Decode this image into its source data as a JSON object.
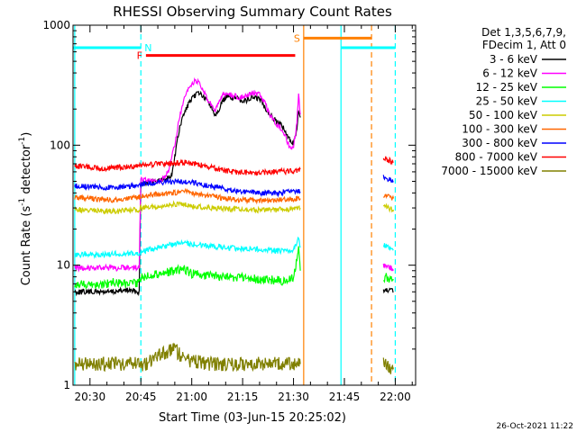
{
  "chart_data": {
    "type": "line",
    "title": "RHESSI Observing Summary Count Rates",
    "xlabel": "Start Time (03-Jun-15 20:25:02)",
    "ylabel_parts": [
      "Count Rate (s",
      "-1",
      " detector",
      "-1",
      ")"
    ],
    "y_scale": "log",
    "ylim": [
      1,
      1000
    ],
    "xlim_minutes_of_day": [
      1225.0,
      1326.0
    ],
    "y_tick_labels": [
      {
        "value": 1,
        "label": "1"
      },
      {
        "value": 10,
        "label": "10"
      },
      {
        "value": 100,
        "label": "100"
      },
      {
        "value": 1000,
        "label": "1000"
      }
    ],
    "x_tick_labels": [
      {
        "value": 1230,
        "label": "20:30"
      },
      {
        "value": 1245,
        "label": "20:45"
      },
      {
        "value": 1260,
        "label": "21:00"
      },
      {
        "value": 1275,
        "label": "21:15"
      },
      {
        "value": 1290,
        "label": "21:30"
      },
      {
        "value": 1305,
        "label": "21:45"
      },
      {
        "value": 1320,
        "label": "22:00"
      }
    ],
    "legend_header": [
      "Det 1,3,5,6,7,9,",
      "FDecim 1, Att 0"
    ],
    "legend_position": "right",
    "series": [
      {
        "name": "3 - 6 keV",
        "color": "#000000",
        "points": [
          [
            1225.5,
            6
          ],
          [
            1229,
            6
          ],
          [
            1233,
            6
          ],
          [
            1237,
            6
          ],
          [
            1241,
            6.2
          ],
          [
            1244.5,
            6
          ],
          [
            1245,
            48
          ],
          [
            1249,
            50
          ],
          [
            1252,
            52
          ],
          [
            1254,
            55
          ],
          [
            1255,
            80
          ],
          [
            1256,
            120
          ],
          [
            1257,
            160
          ],
          [
            1258,
            190
          ],
          [
            1259,
            220
          ],
          [
            1260,
            240
          ],
          [
            1261,
            260
          ],
          [
            1262,
            280
          ],
          [
            1263,
            260
          ],
          [
            1264,
            240
          ],
          [
            1265,
            230
          ],
          [
            1266,
            200
          ],
          [
            1267,
            180
          ],
          [
            1268,
            200
          ],
          [
            1269,
            230
          ],
          [
            1270,
            250
          ],
          [
            1272,
            250
          ],
          [
            1274,
            240
          ],
          [
            1276,
            235
          ],
          [
            1278,
            250
          ],
          [
            1280,
            245
          ],
          [
            1281,
            220
          ],
          [
            1282,
            200
          ],
          [
            1283,
            180
          ],
          [
            1285,
            160
          ],
          [
            1287,
            140
          ],
          [
            1288,
            120
          ],
          [
            1289,
            110
          ],
          [
            1290,
            105
          ],
          [
            1291,
            130
          ],
          [
            1291.5,
            200
          ],
          [
            1292,
            170
          ]
        ],
        "gap_after_minute": 1292.2,
        "resume_points": [
          [
            1316.5,
            6
          ],
          [
            1318,
            6.2
          ],
          [
            1319.5,
            6
          ]
        ]
      },
      {
        "name": "6 - 12 keV",
        "color": "#ff00ff",
        "points": [
          [
            1225.5,
            9.5
          ],
          [
            1229,
            9.5
          ],
          [
            1233,
            9.6
          ],
          [
            1237,
            9.4
          ],
          [
            1241,
            9.6
          ],
          [
            1244.5,
            9.5
          ],
          [
            1245,
            52
          ],
          [
            1248,
            50
          ],
          [
            1251,
            50
          ],
          [
            1253,
            60
          ],
          [
            1255,
            100
          ],
          [
            1256,
            150
          ],
          [
            1257,
            200
          ],
          [
            1258,
            250
          ],
          [
            1259,
            290
          ],
          [
            1260,
            320
          ],
          [
            1261,
            350
          ],
          [
            1262,
            330
          ],
          [
            1263,
            300
          ],
          [
            1264,
            260
          ],
          [
            1265,
            230
          ],
          [
            1266,
            210
          ],
          [
            1267,
            190
          ],
          [
            1268,
            230
          ],
          [
            1269,
            260
          ],
          [
            1270,
            270
          ],
          [
            1272,
            260
          ],
          [
            1274,
            250
          ],
          [
            1276,
            260
          ],
          [
            1278,
            270
          ],
          [
            1280,
            265
          ],
          [
            1281,
            240
          ],
          [
            1282,
            210
          ],
          [
            1283,
            180
          ],
          [
            1285,
            150
          ],
          [
            1287,
            130
          ],
          [
            1288,
            110
          ],
          [
            1289,
            95
          ],
          [
            1290,
            95
          ],
          [
            1291,
            150
          ],
          [
            1291.5,
            260
          ],
          [
            1292,
            180
          ]
        ],
        "gap_after_minute": 1292.2,
        "resume_points": [
          [
            1316.5,
            10
          ],
          [
            1318,
            9.8
          ],
          [
            1319.5,
            9.2
          ]
        ]
      },
      {
        "name": "12 - 25 keV",
        "color": "#00ff00",
        "points": [
          [
            1225.5,
            6.8
          ],
          [
            1229,
            7
          ],
          [
            1233,
            6.9
          ],
          [
            1237,
            7.2
          ],
          [
            1241,
            7
          ],
          [
            1244.5,
            7
          ],
          [
            1245,
            8
          ],
          [
            1250,
            8.5
          ],
          [
            1255,
            9
          ],
          [
            1258,
            9.2
          ],
          [
            1260,
            8.5
          ],
          [
            1265,
            8.2
          ],
          [
            1270,
            8
          ],
          [
            1275,
            7.8
          ],
          [
            1280,
            7.6
          ],
          [
            1285,
            7.5
          ],
          [
            1288,
            7.4
          ],
          [
            1290,
            7.8
          ],
          [
            1291.5,
            14
          ],
          [
            1292,
            9
          ]
        ],
        "gap_after_minute": 1292.2,
        "resume_points": [
          [
            1316.5,
            8
          ],
          [
            1318,
            7.8
          ],
          [
            1319.5,
            7.5
          ]
        ]
      },
      {
        "name": "25 - 50 keV",
        "color": "#00ffff",
        "points": [
          [
            1225.5,
            12
          ],
          [
            1229,
            12.5
          ],
          [
            1233,
            12
          ],
          [
            1237,
            12.5
          ],
          [
            1241,
            12.5
          ],
          [
            1244.5,
            12.5
          ],
          [
            1245,
            13
          ],
          [
            1250,
            14
          ],
          [
            1255,
            15
          ],
          [
            1258,
            15.5
          ],
          [
            1260,
            15
          ],
          [
            1265,
            14.5
          ],
          [
            1270,
            14
          ],
          [
            1275,
            13.8
          ],
          [
            1280,
            13.5
          ],
          [
            1285,
            13.2
          ],
          [
            1288,
            13
          ],
          [
            1290,
            13.2
          ],
          [
            1291.5,
            17
          ],
          [
            1292,
            14
          ]
        ],
        "gap_after_minute": 1292.2,
        "resume_points": [
          [
            1316.5,
            15
          ],
          [
            1318,
            14
          ],
          [
            1319.5,
            13.5
          ]
        ]
      },
      {
        "name": "50 - 100 keV",
        "color": "#cccc00",
        "points": [
          [
            1225.5,
            29
          ],
          [
            1229,
            29
          ],
          [
            1233,
            28.5
          ],
          [
            1237,
            28
          ],
          [
            1241,
            28.5
          ],
          [
            1244.5,
            29
          ],
          [
            1245,
            30
          ],
          [
            1250,
            31
          ],
          [
            1255,
            32
          ],
          [
            1258,
            32
          ],
          [
            1260,
            31
          ],
          [
            1265,
            30
          ],
          [
            1270,
            29.5
          ],
          [
            1275,
            29
          ],
          [
            1280,
            28.8
          ],
          [
            1285,
            29
          ],
          [
            1290,
            29.5
          ],
          [
            1292,
            30
          ]
        ],
        "gap_after_minute": 1292.2,
        "resume_points": [
          [
            1316.5,
            31
          ],
          [
            1318,
            30
          ],
          [
            1319.5,
            29
          ]
        ]
      },
      {
        "name": "100 - 300 keV",
        "color": "#ff6600",
        "points": [
          [
            1225.5,
            37
          ],
          [
            1229,
            36
          ],
          [
            1233,
            35.5
          ],
          [
            1237,
            35
          ],
          [
            1241,
            36
          ],
          [
            1244.5,
            37
          ],
          [
            1245,
            38
          ],
          [
            1250,
            39
          ],
          [
            1255,
            40
          ],
          [
            1258,
            41
          ],
          [
            1260,
            40
          ],
          [
            1265,
            38
          ],
          [
            1270,
            36
          ],
          [
            1275,
            35
          ],
          [
            1280,
            34.5
          ],
          [
            1285,
            35
          ],
          [
            1290,
            35.5
          ],
          [
            1292,
            36
          ]
        ],
        "gap_after_minute": 1292.2,
        "resume_points": [
          [
            1316.5,
            38
          ],
          [
            1318,
            37
          ],
          [
            1319.5,
            36
          ]
        ]
      },
      {
        "name": "300 - 800 keV",
        "color": "#0000ff",
        "points": [
          [
            1225.5,
            46
          ],
          [
            1229,
            45
          ],
          [
            1233,
            45
          ],
          [
            1237,
            44
          ],
          [
            1241,
            45
          ],
          [
            1244.5,
            46
          ],
          [
            1245,
            47
          ],
          [
            1250,
            49
          ],
          [
            1255,
            50
          ],
          [
            1258,
            50
          ],
          [
            1260,
            49
          ],
          [
            1265,
            46
          ],
          [
            1270,
            43
          ],
          [
            1275,
            41
          ],
          [
            1280,
            40
          ],
          [
            1285,
            40
          ],
          [
            1290,
            41
          ],
          [
            1292,
            41
          ]
        ],
        "gap_after_minute": 1292.2,
        "resume_points": [
          [
            1316.5,
            55
          ],
          [
            1318,
            52
          ],
          [
            1319.5,
            50
          ]
        ]
      },
      {
        "name": "800 - 7000 keV",
        "color": "#ff0000",
        "points": [
          [
            1225.5,
            67
          ],
          [
            1229,
            66
          ],
          [
            1233,
            64
          ],
          [
            1237,
            65
          ],
          [
            1241,
            66
          ],
          [
            1244.5,
            67
          ],
          [
            1245,
            68
          ],
          [
            1250,
            70
          ],
          [
            1255,
            71
          ],
          [
            1258,
            72
          ],
          [
            1260,
            71
          ],
          [
            1265,
            66
          ],
          [
            1270,
            61
          ],
          [
            1275,
            59
          ],
          [
            1280,
            59
          ],
          [
            1285,
            60
          ],
          [
            1290,
            61
          ],
          [
            1292,
            63
          ]
        ],
        "gap_after_minute": 1292.2,
        "resume_points": [
          [
            1316.5,
            80
          ],
          [
            1318,
            75
          ],
          [
            1319.5,
            72
          ]
        ]
      },
      {
        "name": "7000 - 15000 keV",
        "color": "#808000",
        "points": [
          [
            1225.5,
            1.5
          ],
          [
            1230,
            1.5
          ],
          [
            1235,
            1.5
          ],
          [
            1240,
            1.5
          ],
          [
            1244.5,
            1.5
          ],
          [
            1245,
            1.4
          ],
          [
            1250,
            1.8
          ],
          [
            1255,
            2
          ],
          [
            1258,
            1.6
          ],
          [
            1260,
            1.6
          ],
          [
            1265,
            1.5
          ],
          [
            1270,
            1.5
          ],
          [
            1275,
            1.5
          ],
          [
            1280,
            1.5
          ],
          [
            1285,
            1.5
          ],
          [
            1290,
            1.5
          ],
          [
            1292,
            1.5
          ]
        ],
        "gap_after_minute": 1292.2,
        "resume_points": [
          [
            1316.5,
            1.5
          ],
          [
            1318,
            1.4
          ],
          [
            1319.5,
            1.4
          ]
        ]
      }
    ],
    "annotation_bars": [
      {
        "label": "N",
        "color": "#00ffff",
        "y_value": 650,
        "x_start": 1225.0,
        "x_end": 1245.0
      },
      {
        "label": "",
        "color": "#00ffff",
        "y_value": 650,
        "x_start": 1304.0,
        "x_end": 1320.0
      },
      {
        "label": "F",
        "color": "#ff0000",
        "y_value": 560,
        "x_start": 1246.5,
        "x_end": 1290.5
      },
      {
        "label": "S",
        "color": "#ff8000",
        "y_value": 780,
        "x_start": 1293.0,
        "x_end": 1313.0
      }
    ],
    "vertical_markers": [
      {
        "x": 1225.5,
        "color": "#00ffff",
        "style": "solid"
      },
      {
        "x": 1245.0,
        "color": "#00ffff",
        "style": "dashed"
      },
      {
        "x": 1293.0,
        "color": "#ff8000",
        "style": "solid"
      },
      {
        "x": 1304.0,
        "color": "#00ffff",
        "style": "solid"
      },
      {
        "x": 1313.0,
        "color": "#ff8000",
        "style": "dashed"
      },
      {
        "x": 1320.0,
        "color": "#00ffff",
        "style": "dashed"
      }
    ],
    "footer_date": "26-Oct-2021 11:22"
  }
}
